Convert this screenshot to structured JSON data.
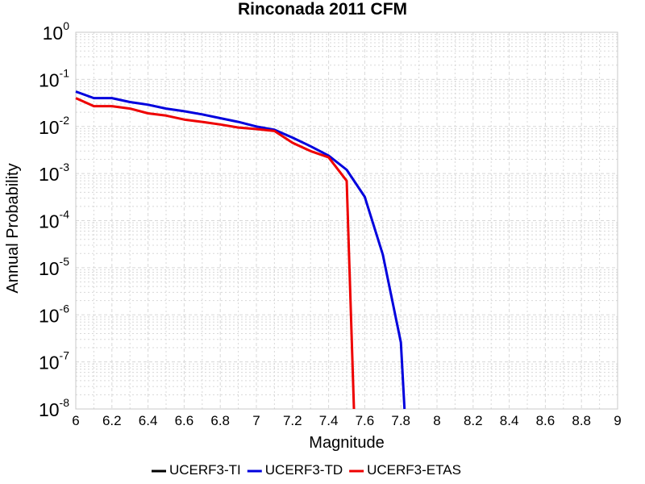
{
  "chart_data": {
    "type": "line",
    "title": "Rinconada 2011 CFM",
    "xlabel": "Magnitude",
    "ylabel": "Annual Probability",
    "xlim": [
      6,
      9
    ],
    "ylim": [
      1e-08,
      1
    ],
    "yscale": "log",
    "grid": true,
    "legend_position": "bottom",
    "x_ticks": [
      "6",
      "6.2",
      "6.4",
      "6.6",
      "6.8",
      "7",
      "7.2",
      "7.4",
      "7.6",
      "7.8",
      "8",
      "8.2",
      "8.4",
      "8.6",
      "8.8",
      "9"
    ],
    "y_ticks": [
      {
        "base": "10",
        "exp": "0"
      },
      {
        "base": "10",
        "exp": "-1"
      },
      {
        "base": "10",
        "exp": "-2"
      },
      {
        "base": "10",
        "exp": "-3"
      },
      {
        "base": "10",
        "exp": "-4"
      },
      {
        "base": "10",
        "exp": "-5"
      },
      {
        "base": "10",
        "exp": "-6"
      },
      {
        "base": "10",
        "exp": "-7"
      },
      {
        "base": "10",
        "exp": "-8"
      }
    ],
    "series": [
      {
        "name": "UCERF3-TI",
        "color": "#000000",
        "x": [],
        "y": []
      },
      {
        "name": "UCERF3-TD",
        "color": "#0000dd",
        "x": [
          6.0,
          6.1,
          6.2,
          6.3,
          6.4,
          6.5,
          6.6,
          6.7,
          6.8,
          6.9,
          7.0,
          7.1,
          7.2,
          7.3,
          7.4,
          7.5,
          7.6,
          7.7,
          7.8,
          7.82
        ],
        "y": [
          0.055,
          0.04,
          0.04,
          0.033,
          0.029,
          0.024,
          0.021,
          0.018,
          0.015,
          0.0125,
          0.01,
          0.0085,
          0.0058,
          0.0038,
          0.0024,
          0.0012,
          0.00032,
          1.9e-05,
          2.6e-07,
          1e-08
        ]
      },
      {
        "name": "UCERF3-ETAS",
        "color": "#ee0000",
        "x": [
          6.0,
          6.1,
          6.2,
          6.3,
          6.4,
          6.5,
          6.6,
          6.7,
          6.8,
          6.9,
          7.0,
          7.1,
          7.2,
          7.3,
          7.4,
          7.5,
          7.54
        ],
        "y": [
          0.04,
          0.027,
          0.027,
          0.024,
          0.019,
          0.017,
          0.014,
          0.0125,
          0.011,
          0.0095,
          0.0088,
          0.008,
          0.0045,
          0.003,
          0.0022,
          0.0007,
          1e-08
        ]
      }
    ]
  }
}
